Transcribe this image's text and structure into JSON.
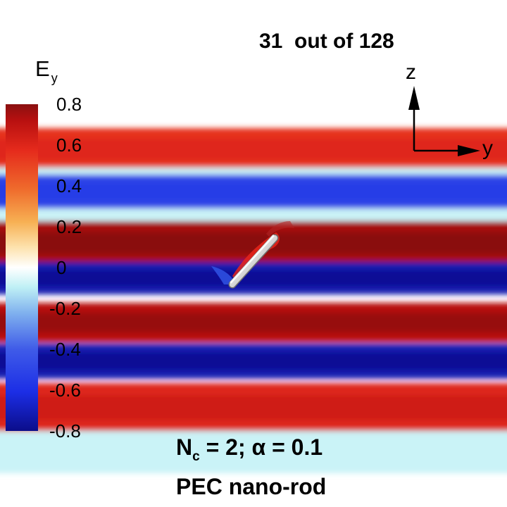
{
  "frame_counter": {
    "current": "31",
    "separator": "out of",
    "total": "128"
  },
  "colorbar": {
    "quantity": "E",
    "quantity_subscript": "y",
    "ticks": [
      "0.8",
      "0.6",
      "0.4",
      "0.2",
      "0",
      "-0.2",
      "-0.4",
      "-0.6",
      "-0.8"
    ],
    "min": -0.8,
    "max": 0.8,
    "colors": [
      "#0b0d8a",
      "#1c2ee6",
      "#3f5be8",
      "#7fb0ee",
      "#bff0f5",
      "#ffffff",
      "#fde3b0",
      "#f7b053",
      "#ef6b2c",
      "#e52a1c",
      "#b81010",
      "#8a1010"
    ]
  },
  "axes": {
    "vertical": "z",
    "horizontal": "y"
  },
  "caption": {
    "n_symbol": "N",
    "n_subscript": "c",
    "n_value": " = 2; ",
    "alpha_symbol": "α",
    "alpha_value": " = 0.1",
    "object": "PEC nano-rod"
  },
  "field_bands": [
    {
      "value": 0.55
    },
    {
      "value": -0.08
    },
    {
      "value": -0.5
    },
    {
      "value": -0.08
    },
    {
      "value": 0.75
    },
    {
      "value": -0.72
    },
    {
      "value": 0.72
    },
    {
      "value": -0.72
    },
    {
      "value": 0.6
    },
    {
      "value": -0.08
    }
  ]
}
